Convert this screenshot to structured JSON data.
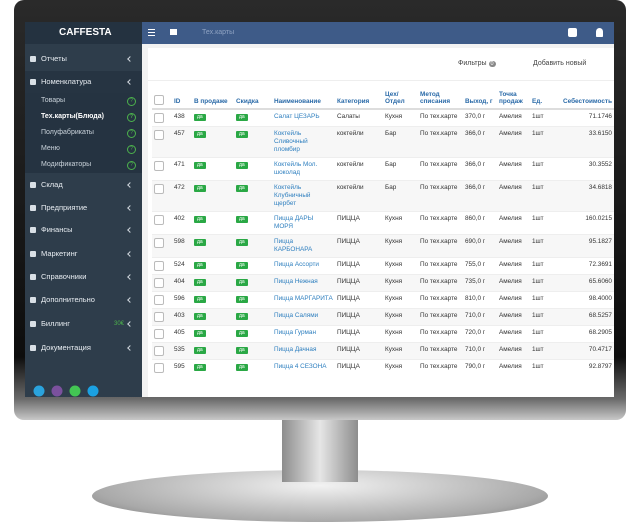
{
  "header": {
    "brand": "CAFFESTA",
    "breadcrumb": "Тех.карты"
  },
  "sidebar": {
    "items": [
      {
        "label": "Отчеты"
      },
      {
        "label": "Номенклатура"
      },
      {
        "label": "Склад"
      },
      {
        "label": "Предприятие"
      },
      {
        "label": "Финансы"
      },
      {
        "label": "Маркетинг"
      },
      {
        "label": "Справочники"
      },
      {
        "label": "Дополнительно"
      },
      {
        "label": "Биллинг",
        "badge": "30€"
      },
      {
        "label": "Документация"
      }
    ],
    "submenu": [
      "Товары",
      "Тех.карты(Блюда)",
      "Полуфабрикаты",
      "Меню",
      "Модификаторы"
    ],
    "help_icon": "?"
  },
  "toolbar": {
    "filters": "Фильтры",
    "filter_count": "0",
    "add": "Добавить новый"
  },
  "table": {
    "columns": [
      "ID",
      "В продаже",
      "Скидка",
      "Наименование",
      "Категория",
      "Цех/ Отдел",
      "Метод списания",
      "Выход, г",
      "Точка продаж",
      "Ед.",
      "Себестоимость"
    ],
    "rows": [
      [
        "438",
        "да",
        "да",
        "Салат ЦЕЗАРЬ",
        "Салаты",
        "Кухня",
        "По тех.карте",
        "370,0 г",
        "Амелия",
        "1шт",
        "71.1746"
      ],
      [
        "457",
        "да",
        "да",
        "Коктейль Сливочный пломбир",
        "коктейли",
        "Бар",
        "По тех.карте",
        "366,0 г",
        "Амелия",
        "1шт",
        "33.6150"
      ],
      [
        "471",
        "да",
        "да",
        "Коктейль Мол. шоколад",
        "коктейли",
        "Бар",
        "По тех.карте",
        "366,0 г",
        "Амелия",
        "1шт",
        "30.3552"
      ],
      [
        "472",
        "да",
        "да",
        "Коктейль Клубничный щербет",
        "коктейли",
        "Бар",
        "По тех.карте",
        "366,0 г",
        "Амелия",
        "1шт",
        "34.6818"
      ],
      [
        "402",
        "да",
        "да",
        "Пицца ДАРЫ МОРЯ",
        "ПИЦЦА",
        "Кухня",
        "По тех.карте",
        "860,0 г",
        "Амелия",
        "1шт",
        "160.0215"
      ],
      [
        "598",
        "да",
        "да",
        "Пицца КАРБОНАРА",
        "ПИЦЦА",
        "Кухня",
        "По тех.карте",
        "690,0 г",
        "Амелия",
        "1шт",
        "95.1827"
      ],
      [
        "524",
        "да",
        "да",
        "Пицца Ассорти",
        "ПИЦЦА",
        "Кухня",
        "По тех.карте",
        "755,0 г",
        "Амелия",
        "1шт",
        "72.3691"
      ],
      [
        "404",
        "да",
        "да",
        "Пицца Нежная",
        "ПИЦЦА",
        "Кухня",
        "По тех.карте",
        "735,0 г",
        "Амелия",
        "1шт",
        "65.6060"
      ],
      [
        "596",
        "да",
        "да",
        "Пицца МАРГАРИТА",
        "ПИЦЦА",
        "Кухня",
        "По тех.карте",
        "810,0 г",
        "Амелия",
        "1шт",
        "98.4000"
      ],
      [
        "403",
        "да",
        "да",
        "Пицца Салями",
        "ПИЦЦА",
        "Кухня",
        "По тех.карте",
        "710,0 г",
        "Амелия",
        "1шт",
        "68.5257"
      ],
      [
        "405",
        "да",
        "да",
        "Пицца Гурман",
        "ПИЦЦА",
        "Кухня",
        "По тех.карте",
        "720,0 г",
        "Амелия",
        "1шт",
        "68.2905"
      ],
      [
        "535",
        "да",
        "да",
        "Пицца Дачная",
        "ПИЦЦА",
        "Кухня",
        "По тех.карте",
        "710,0 г",
        "Амелия",
        "1шт",
        "70.4717"
      ],
      [
        "595",
        "да",
        "да",
        "Пицца 4 СЕЗОНА",
        "ПИЦЦА",
        "Кухня",
        "По тех.карте",
        "790,0 г",
        "Амелия",
        "1шт",
        "92.8797"
      ]
    ]
  }
}
